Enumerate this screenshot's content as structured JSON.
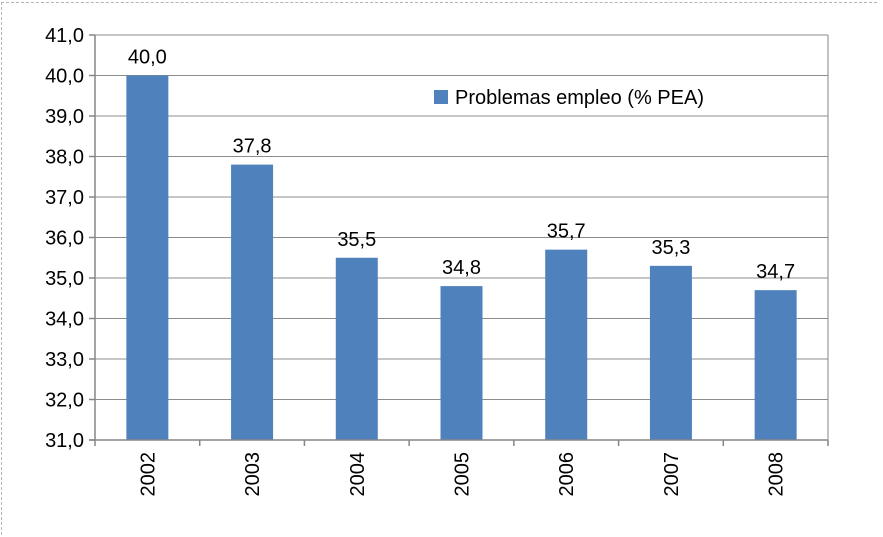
{
  "chart_data": {
    "type": "bar",
    "categories": [
      "2002",
      "2003",
      "2004",
      "2005",
      "2006",
      "2007",
      "2008"
    ],
    "series": [
      {
        "name": "Problemas empleo (% PEA)",
        "values": [
          40.0,
          37.8,
          35.5,
          34.8,
          35.7,
          35.3,
          34.7
        ],
        "labels": [
          "40,0",
          "37,8",
          "35,5",
          "34,8",
          "35,7",
          "35,3",
          "34,7"
        ]
      }
    ],
    "ylim": [
      31.0,
      41.0
    ],
    "yticks": [
      "31,0",
      "32,0",
      "33,0",
      "34,0",
      "35,0",
      "36,0",
      "37,0",
      "38,0",
      "39,0",
      "40,0",
      "41,0"
    ],
    "grid": true,
    "legend": "top-right",
    "colors": {
      "bar": "#4f81bd",
      "grid": "#8c8c8c",
      "axis": "#868686",
      "plot_border": "#868686"
    }
  }
}
